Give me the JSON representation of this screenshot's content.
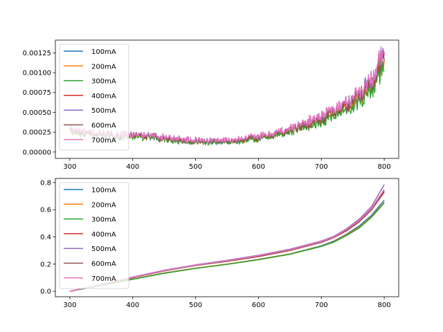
{
  "chart_data": [
    {
      "type": "line",
      "title": "",
      "xlabel": "",
      "ylabel": "",
      "xlim": [
        277,
        823
      ],
      "ylim": [
        -8e-05,
        0.00141
      ],
      "xticks": [
        300,
        400,
        500,
        600,
        700,
        800
      ],
      "yticks": [
        0.0,
        0.00025,
        0.0005,
        0.00075,
        0.001,
        0.00125
      ],
      "ytick_labels": [
        "0.00000",
        "0.00025",
        "0.00050",
        "0.00075",
        "0.00100",
        "0.00125"
      ],
      "legend_position": "upper-left",
      "series": [
        {
          "name": "100mA",
          "color": "#1f77b4",
          "x": [
            300,
            320,
            340,
            360,
            380,
            400,
            420,
            440,
            460,
            480,
            500,
            520,
            540,
            560,
            580,
            600,
            620,
            640,
            660,
            680,
            700,
            720,
            740,
            760,
            780,
            800
          ],
          "y": [
            0.00028,
            0.00024,
            0.00022,
            0.00021,
            0.0002,
            0.00021,
            0.0002,
            0.00019,
            0.00017,
            0.00015,
            0.00014,
            0.00013,
            0.00013,
            0.00014,
            0.00016,
            0.00018,
            0.00021,
            0.00025,
            0.0003,
            0.00036,
            0.00042,
            0.0005,
            0.00058,
            0.0007,
            0.00087,
            0.00118
          ]
        },
        {
          "name": "200mA",
          "color": "#ff7f0e",
          "x": [
            300,
            320,
            340,
            360,
            380,
            400,
            420,
            440,
            460,
            480,
            500,
            520,
            540,
            560,
            580,
            600,
            620,
            640,
            660,
            680,
            700,
            720,
            740,
            760,
            780,
            800
          ],
          "y": [
            0.00027,
            0.00023,
            0.00022,
            0.00021,
            0.0002,
            0.0002,
            0.00019,
            0.00018,
            0.00016,
            0.00014,
            0.00013,
            0.00013,
            0.00013,
            0.00014,
            0.00015,
            0.00017,
            0.0002,
            0.00024,
            0.00029,
            0.00034,
            0.0004,
            0.00048,
            0.00056,
            0.00067,
            0.00084,
            0.00112
          ]
        },
        {
          "name": "300mA",
          "color": "#2ca02c",
          "x": [
            300,
            320,
            340,
            360,
            380,
            400,
            420,
            440,
            460,
            480,
            500,
            520,
            540,
            560,
            580,
            600,
            620,
            640,
            660,
            680,
            700,
            720,
            740,
            760,
            780,
            800
          ],
          "y": [
            0.00026,
            0.00022,
            0.00021,
            0.0002,
            0.00019,
            0.00019,
            0.00018,
            0.00017,
            0.00015,
            0.00013,
            0.00012,
            0.00012,
            0.00012,
            0.00013,
            0.00014,
            0.00016,
            0.00019,
            0.00023,
            0.00027,
            0.00032,
            0.00038,
            0.00045,
            0.00052,
            0.00063,
            0.0008,
            0.00105
          ]
        },
        {
          "name": "400mA",
          "color": "#d62728",
          "x": [
            300,
            320,
            340,
            360,
            380,
            400,
            420,
            440,
            460,
            480,
            500,
            520,
            540,
            560,
            580,
            600,
            620,
            640,
            660,
            680,
            700,
            720,
            740,
            760,
            780,
            800
          ],
          "y": [
            0.00028,
            0.00024,
            0.00023,
            0.00022,
            0.00021,
            0.00021,
            0.0002,
            0.00019,
            0.00017,
            0.00015,
            0.00014,
            0.00014,
            0.00014,
            0.00015,
            0.00017,
            0.00019,
            0.00022,
            0.00026,
            0.00031,
            0.00037,
            0.00044,
            0.00052,
            0.0006,
            0.00072,
            0.0009,
            0.0012
          ]
        },
        {
          "name": "500mA",
          "color": "#9467bd",
          "x": [
            300,
            320,
            340,
            360,
            380,
            400,
            420,
            440,
            460,
            480,
            500,
            520,
            540,
            560,
            580,
            600,
            620,
            640,
            660,
            680,
            700,
            720,
            740,
            760,
            780,
            800
          ],
          "y": [
            0.00029,
            0.00025,
            0.00023,
            0.00022,
            0.00021,
            0.00022,
            0.00021,
            0.0002,
            0.00018,
            0.00016,
            0.00015,
            0.00014,
            0.00014,
            0.00015,
            0.00017,
            0.00019,
            0.00022,
            0.00027,
            0.00032,
            0.00038,
            0.00045,
            0.00053,
            0.00062,
            0.00074,
            0.00093,
            0.00125
          ]
        },
        {
          "name": "600mA",
          "color": "#8c564b",
          "x": [
            300,
            320,
            340,
            360,
            380,
            400,
            420,
            440,
            460,
            480,
            500,
            520,
            540,
            560,
            580,
            600,
            620,
            640,
            660,
            680,
            700,
            720,
            740,
            760,
            780,
            800
          ],
          "y": [
            0.00028,
            0.00024,
            0.00023,
            0.00022,
            0.00021,
            0.00021,
            0.0002,
            0.00019,
            0.00017,
            0.00015,
            0.00014,
            0.00014,
            0.00014,
            0.00015,
            0.00016,
            0.00019,
            0.00022,
            0.00026,
            0.00031,
            0.00037,
            0.00043,
            0.00051,
            0.00059,
            0.00071,
            0.00089,
            0.00119
          ]
        },
        {
          "name": "700mA",
          "color": "#e377c2",
          "x": [
            300,
            320,
            340,
            360,
            380,
            400,
            420,
            440,
            460,
            480,
            500,
            520,
            540,
            560,
            580,
            600,
            620,
            640,
            660,
            680,
            700,
            720,
            740,
            760,
            780,
            800
          ],
          "y": [
            0.0003,
            0.00026,
            0.00024,
            0.00023,
            0.00022,
            0.00022,
            0.00021,
            0.0002,
            0.00018,
            0.00016,
            0.00015,
            0.00015,
            0.00015,
            0.00016,
            0.00018,
            0.0002,
            0.00023,
            0.00027,
            0.00032,
            0.00039,
            0.00046,
            0.00054,
            0.00063,
            0.00075,
            0.00094,
            0.00124
          ]
        }
      ]
    },
    {
      "type": "line",
      "title": "",
      "xlabel": "",
      "ylabel": "",
      "xlim": [
        277,
        823
      ],
      "ylim": [
        -0.04,
        0.83
      ],
      "xticks": [
        300,
        400,
        500,
        600,
        700,
        800
      ],
      "yticks": [
        0.0,
        0.2,
        0.4,
        0.6,
        0.8
      ],
      "ytick_labels": [
        "0.0",
        "0.2",
        "0.4",
        "0.6",
        "0.8"
      ],
      "legend_position": "upper-left",
      "series": [
        {
          "name": "100mA",
          "color": "#1f77b4",
          "x": [
            300,
            350,
            400,
            450,
            500,
            550,
            600,
            650,
            700,
            720,
            740,
            760,
            780,
            800
          ],
          "y": [
            0.0,
            0.045,
            0.09,
            0.135,
            0.17,
            0.2,
            0.235,
            0.275,
            0.335,
            0.37,
            0.42,
            0.48,
            0.56,
            0.67
          ]
        },
        {
          "name": "200mA",
          "color": "#ff7f0e",
          "x": [
            300,
            350,
            400,
            450,
            500,
            550,
            600,
            650,
            700,
            720,
            740,
            760,
            780,
            800
          ],
          "y": [
            0.0,
            0.044,
            0.09,
            0.134,
            0.17,
            0.2,
            0.234,
            0.274,
            0.332,
            0.365,
            0.415,
            0.47,
            0.55,
            0.655
          ]
        },
        {
          "name": "300mA",
          "color": "#2ca02c",
          "x": [
            300,
            350,
            400,
            450,
            500,
            550,
            600,
            650,
            700,
            720,
            740,
            760,
            780,
            800
          ],
          "y": [
            0.0,
            0.043,
            0.088,
            0.132,
            0.168,
            0.198,
            0.232,
            0.272,
            0.33,
            0.362,
            0.41,
            0.465,
            0.545,
            0.65
          ]
        },
        {
          "name": "400mA",
          "color": "#d62728",
          "x": [
            300,
            350,
            400,
            450,
            500,
            550,
            600,
            650,
            700,
            720,
            740,
            760,
            780,
            800
          ],
          "y": [
            0.0,
            0.05,
            0.1,
            0.15,
            0.19,
            0.22,
            0.255,
            0.3,
            0.36,
            0.395,
            0.445,
            0.51,
            0.6,
            0.73
          ]
        },
        {
          "name": "500mA",
          "color": "#9467bd",
          "x": [
            300,
            350,
            400,
            450,
            500,
            550,
            600,
            650,
            700,
            720,
            740,
            760,
            780,
            800
          ],
          "y": [
            0.0,
            0.052,
            0.105,
            0.155,
            0.195,
            0.228,
            0.265,
            0.31,
            0.37,
            0.405,
            0.46,
            0.53,
            0.625,
            0.785
          ]
        },
        {
          "name": "600mA",
          "color": "#8c564b",
          "x": [
            300,
            350,
            400,
            450,
            500,
            550,
            600,
            650,
            700,
            720,
            740,
            760,
            780,
            800
          ],
          "y": [
            0.0,
            0.05,
            0.1,
            0.15,
            0.19,
            0.222,
            0.258,
            0.302,
            0.362,
            0.397,
            0.45,
            0.515,
            0.605,
            0.74
          ]
        },
        {
          "name": "700mA",
          "color": "#e377c2",
          "x": [
            300,
            350,
            400,
            450,
            500,
            550,
            600,
            650,
            700,
            720,
            740,
            760,
            780,
            800
          ],
          "y": [
            0.0,
            0.051,
            0.103,
            0.153,
            0.193,
            0.225,
            0.262,
            0.306,
            0.366,
            0.4,
            0.455,
            0.52,
            0.612,
            0.75
          ]
        }
      ]
    }
  ]
}
